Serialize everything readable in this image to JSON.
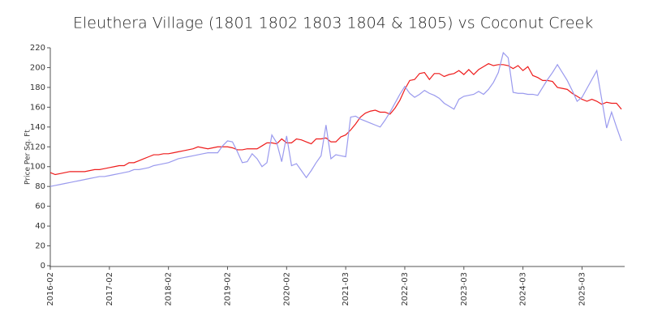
{
  "chart_data": {
    "type": "line",
    "title": "Eleuthera Village (1801 1802 1803 1804 & 1805) vs Coconut Creek",
    "y_label": "Price Per Sq. Ft",
    "categories": [
      "2016-02",
      null,
      null,
      null,
      null,
      null,
      null,
      null,
      null,
      null,
      null,
      null,
      "2017-02",
      null,
      null,
      null,
      null,
      null,
      null,
      null,
      null,
      null,
      null,
      null,
      "2018-02",
      null,
      null,
      null,
      null,
      null,
      null,
      null,
      null,
      null,
      null,
      null,
      "2019-02",
      null,
      null,
      null,
      null,
      null,
      null,
      null,
      null,
      null,
      null,
      null,
      "2020-02",
      null,
      null,
      null,
      null,
      null,
      null,
      null,
      null,
      null,
      null,
      null,
      "2021-03",
      null,
      null,
      null,
      null,
      null,
      null,
      null,
      null,
      null,
      null,
      null,
      "2022-03",
      null,
      null,
      null,
      null,
      null,
      null,
      null,
      null,
      null,
      null,
      null,
      "2023-03",
      null,
      null,
      null,
      null,
      null,
      null,
      null,
      null,
      null,
      null,
      null,
      "2024-03",
      null,
      null,
      null,
      null,
      null,
      null,
      null,
      null,
      null,
      null,
      null,
      "2025-03",
      null,
      null,
      null,
      null,
      null,
      null,
      null,
      null
    ],
    "series": [
      {
        "color": "#ee1c1c",
        "values": [
          94,
          92,
          93,
          94,
          95,
          95,
          95,
          95,
          96,
          97,
          97,
          98,
          99,
          100,
          101,
          101,
          104,
          104,
          106,
          108,
          110,
          112,
          112,
          113,
          113,
          114,
          115,
          116,
          117,
          118,
          120,
          119,
          118,
          119,
          120,
          120,
          120,
          119,
          117,
          117,
          118,
          118,
          118,
          121,
          124,
          124,
          123,
          128,
          124,
          124,
          128,
          127,
          125,
          123,
          128,
          128,
          129,
          125,
          125,
          130,
          132,
          137,
          143,
          150,
          154,
          156,
          157,
          155,
          155,
          153,
          159,
          167,
          178,
          187,
          188,
          194,
          195,
          188,
          194,
          194,
          191,
          193,
          194,
          197,
          193,
          198,
          193,
          198,
          201,
          204,
          202,
          203,
          203,
          202,
          199,
          202,
          197,
          201,
          192,
          190,
          187,
          187,
          186,
          180,
          179,
          178,
          174,
          171,
          168,
          166,
          168,
          166,
          163,
          165,
          164,
          164,
          158
        ]
      },
      {
        "color": "#9a9aee",
        "values": [
          80,
          81,
          82,
          83,
          84,
          85,
          86,
          87,
          88,
          89,
          90,
          90,
          91,
          92,
          93,
          94,
          95,
          97,
          97,
          98,
          99,
          101,
          102,
          103,
          104,
          106,
          108,
          109,
          110,
          111,
          112,
          113,
          114,
          114,
          114,
          121,
          126,
          125,
          115,
          104,
          105,
          113,
          108,
          100,
          104,
          132,
          124,
          105,
          131,
          101,
          103,
          96,
          89,
          96,
          104,
          111,
          142,
          108,
          112,
          111,
          110,
          150,
          151,
          148,
          146,
          144,
          142,
          140,
          147,
          155,
          164,
          173,
          181,
          174,
          170,
          173,
          177,
          174,
          172,
          169,
          164,
          161,
          158,
          168,
          171,
          172,
          173,
          176,
          173,
          178,
          185,
          195,
          215,
          210,
          175,
          174,
          174,
          173,
          173,
          172,
          180,
          188,
          195,
          203,
          195,
          187,
          177,
          166,
          170,
          179,
          188,
          197,
          168,
          139,
          155,
          140,
          126
        ]
      }
    ],
    "ylim": [
      0,
      220
    ],
    "yticks": [
      0,
      20,
      40,
      60,
      80,
      100,
      120,
      140,
      160,
      180,
      200,
      220
    ]
  }
}
